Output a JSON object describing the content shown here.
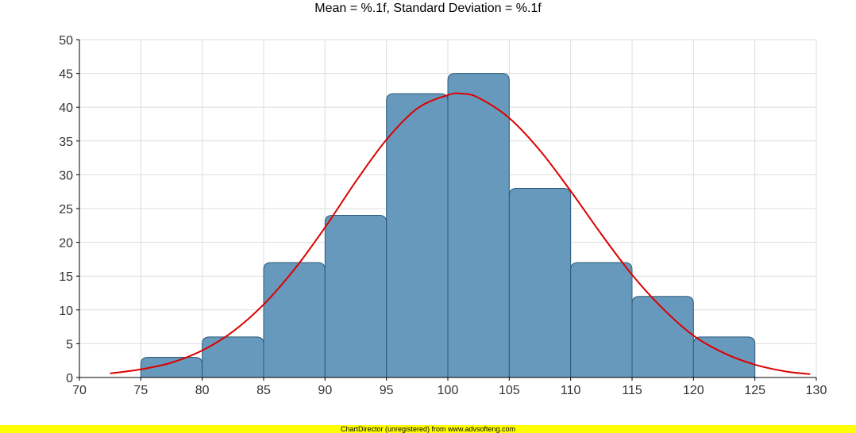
{
  "chart_data": {
    "type": "bar",
    "title": "Mean = %.1f, Standard Deviation = %.1f",
    "xlabel": "",
    "ylabel": "",
    "xlim": [
      70,
      130
    ],
    "ylim": [
      0,
      50
    ],
    "x_ticks": [
      70,
      75,
      80,
      85,
      90,
      95,
      100,
      105,
      110,
      115,
      120,
      125,
      130
    ],
    "y_ticks": [
      0,
      5,
      10,
      15,
      20,
      25,
      30,
      35,
      40,
      45,
      50
    ],
    "grid": true,
    "legend": "none",
    "bins": [
      {
        "from": 75,
        "to": 80,
        "value": 3
      },
      {
        "from": 80,
        "to": 85,
        "value": 6
      },
      {
        "from": 85,
        "to": 90,
        "value": 17
      },
      {
        "from": 90,
        "to": 95,
        "value": 24
      },
      {
        "from": 95,
        "to": 100,
        "value": 42
      },
      {
        "from": 100,
        "to": 105,
        "value": 45
      },
      {
        "from": 105,
        "to": 110,
        "value": 28
      },
      {
        "from": 110,
        "to": 115,
        "value": 17
      },
      {
        "from": 115,
        "to": 120,
        "value": 12
      },
      {
        "from": 120,
        "to": 125,
        "value": 6
      }
    ],
    "bar_color": "#6699bb",
    "bar_border_color": "#2e5a7a",
    "curve": {
      "type": "line",
      "color": "#dd0000",
      "x": [
        72.5,
        75,
        77.5,
        80,
        82.5,
        85,
        87.5,
        90,
        92.5,
        95,
        97.5,
        100,
        101.2,
        102.5,
        105,
        107.5,
        110,
        112.5,
        115,
        117.5,
        120,
        122.5,
        125,
        127.5,
        129.5
      ],
      "y": [
        0.6,
        1.2,
        2.2,
        4.0,
        6.8,
        10.8,
        16.0,
        22.2,
        29.0,
        35.2,
        39.8,
        41.8,
        42.0,
        41.4,
        38.4,
        33.6,
        27.6,
        21.2,
        15.2,
        10.2,
        6.2,
        3.6,
        1.9,
        0.9,
        0.5
      ]
    }
  },
  "footer": {
    "text": "ChartDirector (unregistered) from www.advsofteng.com",
    "color": "#ffff00"
  }
}
